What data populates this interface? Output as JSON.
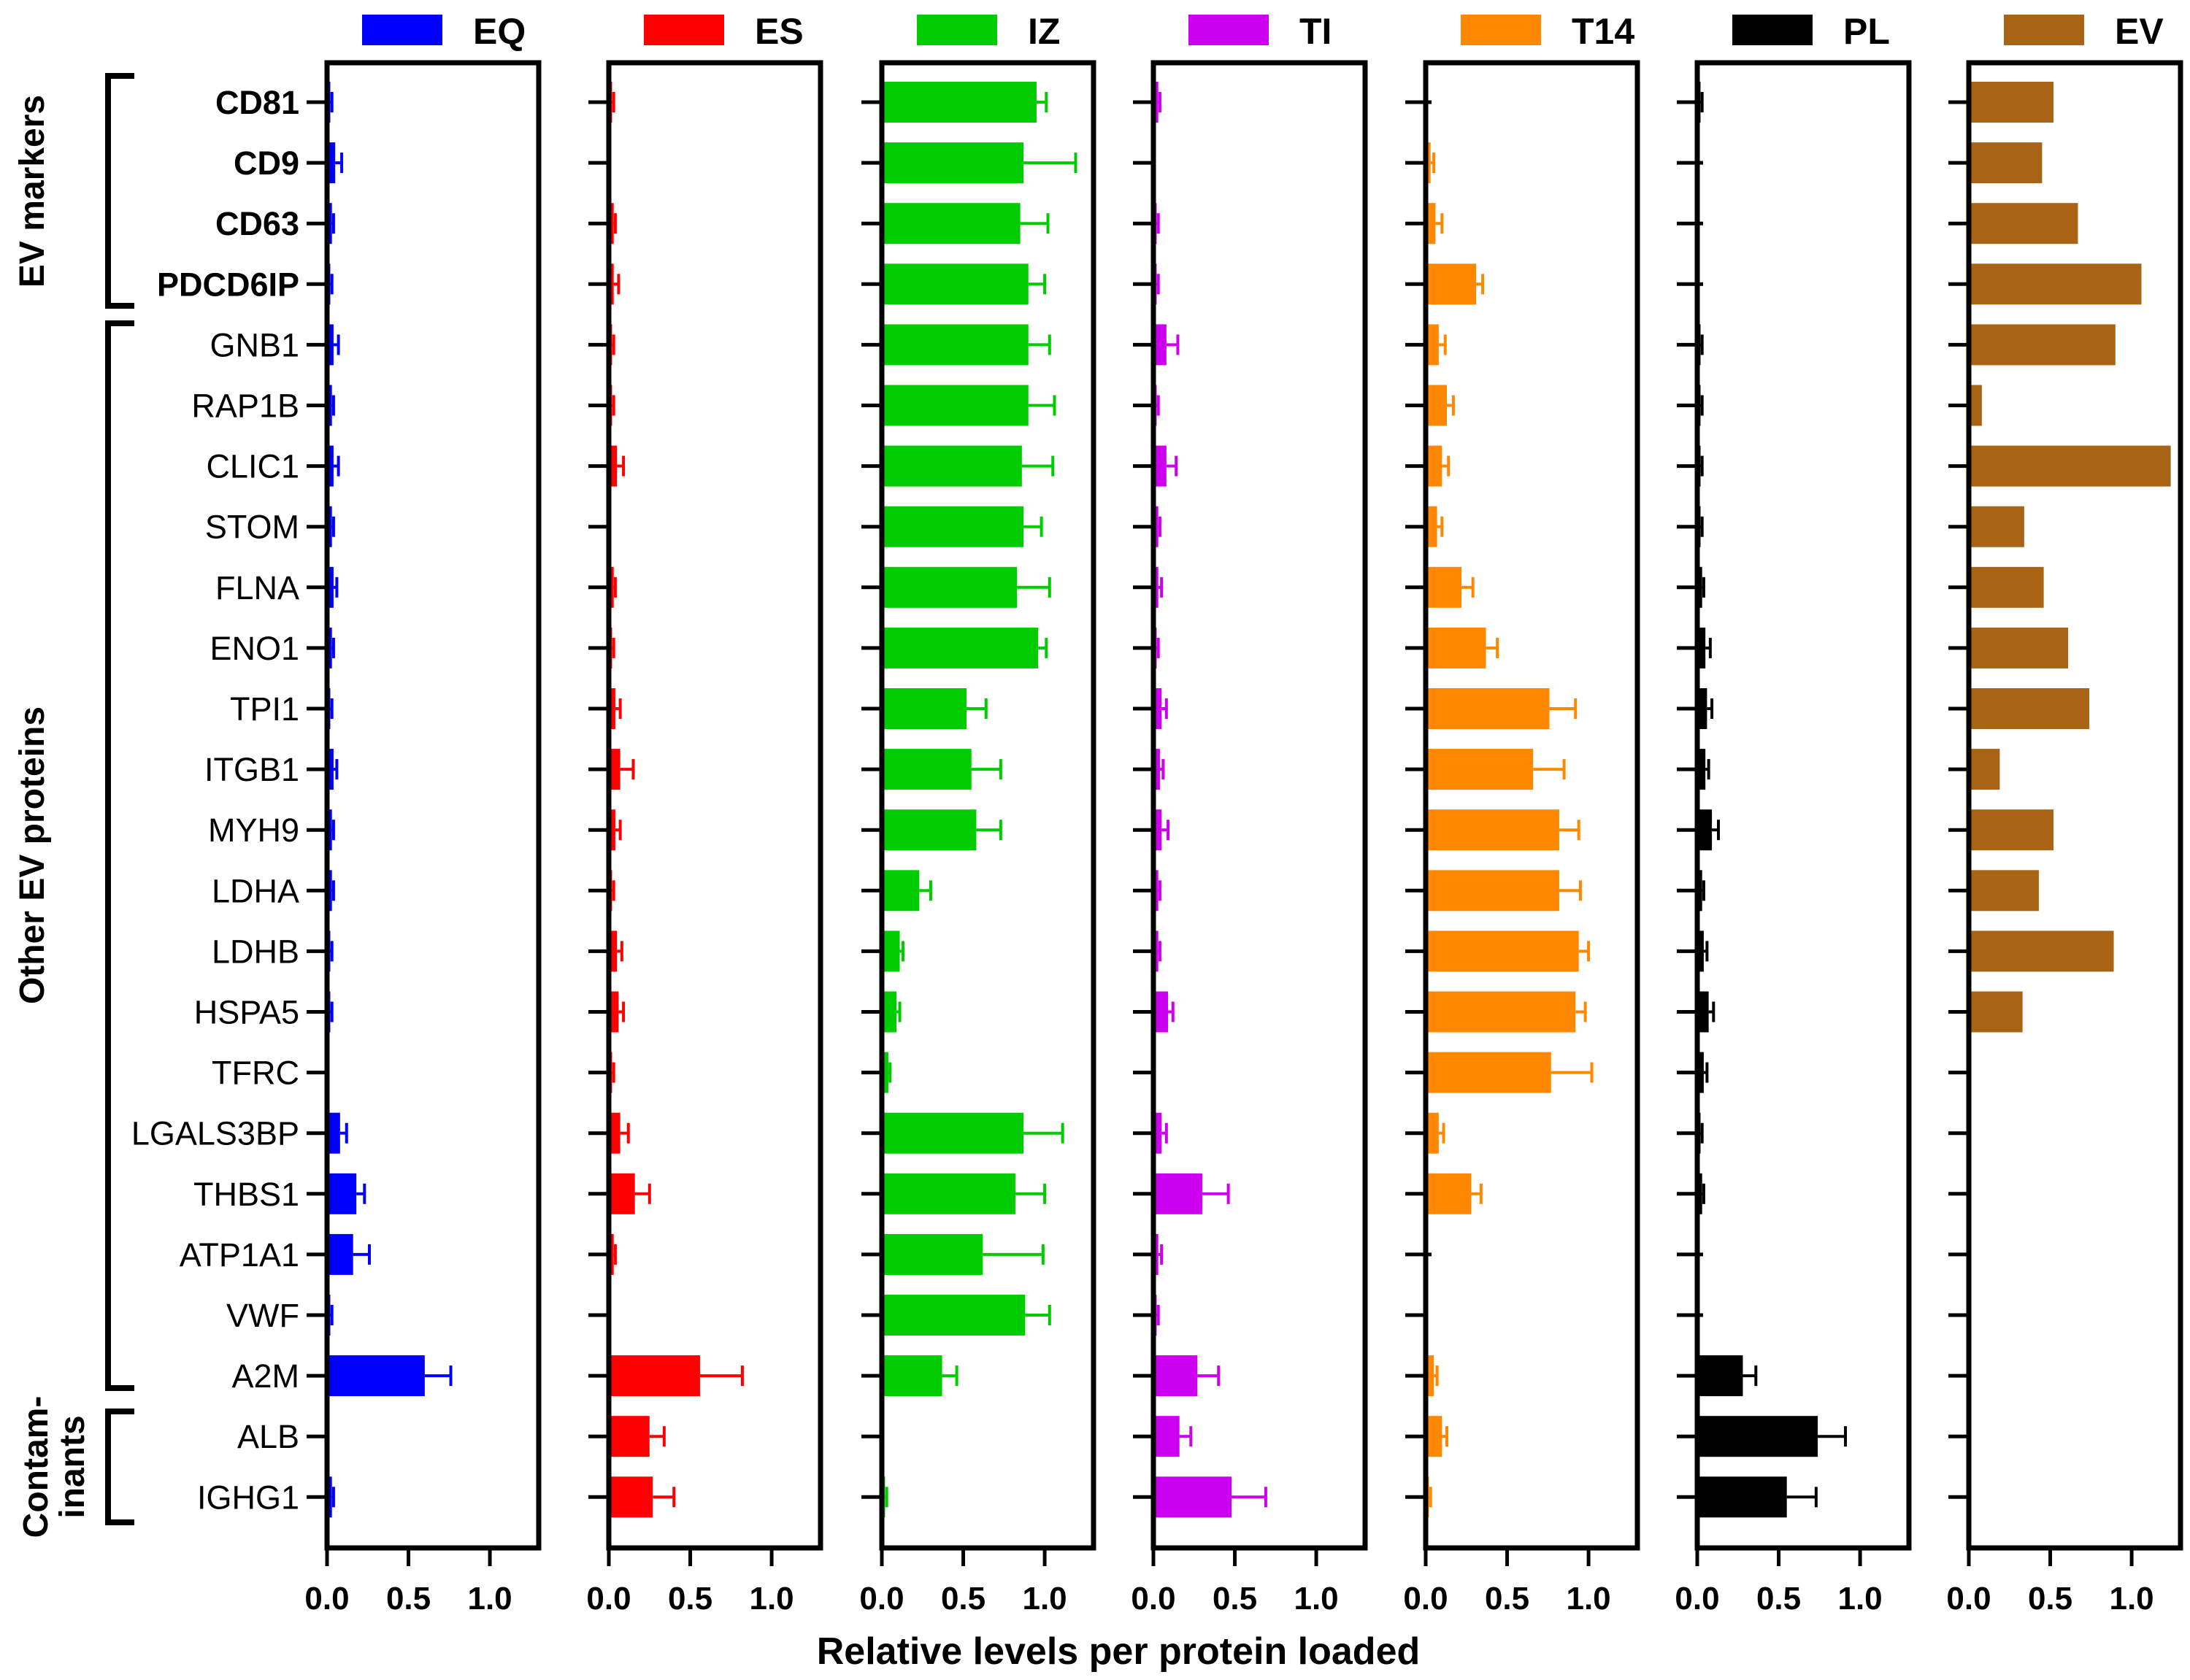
{
  "chart_data": {
    "type": "bar",
    "orientation": "horizontal",
    "xlabel": "Relative levels per protein loaded",
    "xlim": [
      0,
      1.3
    ],
    "xticks": [
      0.0,
      0.5,
      1.0
    ],
    "xtick_labels": [
      "0.0",
      "0.5",
      "1.0"
    ],
    "categories": [
      "CD81",
      "CD9",
      "CD63",
      "PDCD6IP",
      "GNB1",
      "RAP1B",
      "CLIC1",
      "STOM",
      "FLNA",
      "ENO1",
      "TPI1",
      "ITGB1",
      "MYH9",
      "LDHA",
      "LDHB",
      "HSPA5",
      "TFRC",
      "LGALS3BP",
      "THBS1",
      "ATP1A1",
      "VWF",
      "A2M",
      "ALB",
      "IGHG1"
    ],
    "bold_categories": [
      "CD81",
      "CD9",
      "CD63",
      "PDCD6IP"
    ],
    "groups": [
      {
        "label": "EV markers",
        "categories": [
          "CD81",
          "CD9",
          "CD63",
          "PDCD6IP"
        ]
      },
      {
        "label": "Other EV proteins",
        "categories": [
          "GNB1",
          "RAP1B",
          "CLIC1",
          "STOM",
          "FLNA",
          "ENO1",
          "TPI1",
          "ITGB1",
          "MYH9",
          "LDHA",
          "LDHB",
          "HSPA5",
          "TFRC",
          "LGALS3BP",
          "THBS1",
          "ATP1A1",
          "VWF",
          "A2M"
        ]
      },
      {
        "label": "Contam-",
        "label_line2": "inants",
        "categories": [
          "ALB",
          "IGHG1"
        ]
      }
    ],
    "series": [
      {
        "name": "EQ",
        "color": "#0000ff",
        "values": [
          0.02,
          0.05,
          0.03,
          0.02,
          0.04,
          0.03,
          0.04,
          0.03,
          0.04,
          0.03,
          0.02,
          0.04,
          0.03,
          0.03,
          0.02,
          0.02,
          0.0,
          0.08,
          0.18,
          0.16,
          0.02,
          0.6,
          0.01,
          0.03
        ],
        "errors": [
          0.01,
          0.04,
          0.01,
          0.01,
          0.03,
          0.01,
          0.03,
          0.01,
          0.02,
          0.01,
          0.01,
          0.02,
          0.01,
          0.01,
          0.01,
          0.01,
          0.0,
          0.04,
          0.05,
          0.1,
          0.01,
          0.16,
          0.0,
          0.01
        ]
      },
      {
        "name": "ES",
        "color": "#ff0000",
        "values": [
          0.02,
          0.01,
          0.03,
          0.03,
          0.02,
          0.02,
          0.05,
          0.01,
          0.03,
          0.02,
          0.04,
          0.07,
          0.04,
          0.02,
          0.05,
          0.06,
          0.02,
          0.07,
          0.16,
          0.03,
          0.01,
          0.56,
          0.25,
          0.27
        ],
        "errors": [
          0.01,
          0.0,
          0.01,
          0.03,
          0.01,
          0.01,
          0.04,
          0.0,
          0.01,
          0.01,
          0.03,
          0.08,
          0.03,
          0.01,
          0.03,
          0.03,
          0.01,
          0.05,
          0.09,
          0.01,
          0.0,
          0.26,
          0.09,
          0.13
        ]
      },
      {
        "name": "IZ",
        "color": "#00cc00",
        "values": [
          0.95,
          0.87,
          0.85,
          0.9,
          0.9,
          0.9,
          0.86,
          0.87,
          0.83,
          0.96,
          0.52,
          0.55,
          0.58,
          0.23,
          0.11,
          0.09,
          0.04,
          0.87,
          0.82,
          0.62,
          0.88,
          0.37,
          0.01,
          0.02
        ],
        "errors": [
          0.06,
          0.32,
          0.17,
          0.1,
          0.13,
          0.16,
          0.19,
          0.11,
          0.2,
          0.05,
          0.12,
          0.18,
          0.15,
          0.07,
          0.02,
          0.02,
          0.01,
          0.24,
          0.18,
          0.37,
          0.15,
          0.09,
          0.0,
          0.01
        ]
      },
      {
        "name": "TI",
        "color": "#cc00ee",
        "values": [
          0.03,
          0.01,
          0.02,
          0.02,
          0.08,
          0.02,
          0.08,
          0.03,
          0.03,
          0.02,
          0.05,
          0.04,
          0.05,
          0.03,
          0.03,
          0.09,
          0.0,
          0.05,
          0.3,
          0.03,
          0.02,
          0.27,
          0.16,
          0.48
        ],
        "errors": [
          0.01,
          0.0,
          0.01,
          0.01,
          0.07,
          0.01,
          0.06,
          0.01,
          0.02,
          0.01,
          0.03,
          0.02,
          0.04,
          0.01,
          0.01,
          0.03,
          0.0,
          0.03,
          0.16,
          0.02,
          0.01,
          0.13,
          0.07,
          0.21
        ]
      },
      {
        "name": "T14",
        "color": "#ff8800",
        "values": [
          0.0,
          0.03,
          0.06,
          0.31,
          0.08,
          0.13,
          0.1,
          0.07,
          0.22,
          0.37,
          0.76,
          0.66,
          0.82,
          0.82,
          0.94,
          0.92,
          0.77,
          0.08,
          0.28,
          0.0,
          0.01,
          0.05,
          0.1,
          0.02
        ],
        "errors": [
          0.0,
          0.02,
          0.04,
          0.04,
          0.04,
          0.04,
          0.04,
          0.03,
          0.07,
          0.07,
          0.16,
          0.19,
          0.12,
          0.13,
          0.06,
          0.06,
          0.25,
          0.03,
          0.06,
          0.0,
          0.0,
          0.02,
          0.03,
          0.01
        ],
        "zero_ticks": [
          0,
          19
        ]
      },
      {
        "name": "PL",
        "color": "#000000",
        "values": [
          0.02,
          0.0,
          0.0,
          0.0,
          0.02,
          0.02,
          0.02,
          0.02,
          0.03,
          0.05,
          0.06,
          0.05,
          0.09,
          0.03,
          0.04,
          0.07,
          0.04,
          0.02,
          0.03,
          0.0,
          0.0,
          0.28,
          0.74,
          0.55
        ],
        "errors": [
          0.01,
          0.0,
          0.0,
          0.0,
          0.01,
          0.01,
          0.01,
          0.01,
          0.01,
          0.03,
          0.03,
          0.02,
          0.04,
          0.01,
          0.02,
          0.03,
          0.02,
          0.01,
          0.01,
          0.0,
          0.0,
          0.08,
          0.17,
          0.18
        ],
        "zero_ticks": [
          1,
          2,
          3,
          19,
          20
        ]
      },
      {
        "name": "EV",
        "color": "#a86414",
        "values": [
          0.52,
          0.45,
          0.67,
          1.06,
          0.9,
          0.08,
          1.24,
          0.34,
          0.46,
          0.61,
          0.74,
          0.19,
          0.52,
          0.43,
          0.89,
          0.33,
          0.01,
          0.01,
          0.01,
          0.0,
          0.0,
          0.0,
          0.0,
          0.0
        ],
        "errors": [
          0,
          0,
          0,
          0,
          0,
          0,
          0,
          0,
          0,
          0,
          0,
          0,
          0,
          0,
          0,
          0,
          0,
          0,
          0,
          0,
          0,
          0,
          0,
          0
        ]
      }
    ]
  }
}
